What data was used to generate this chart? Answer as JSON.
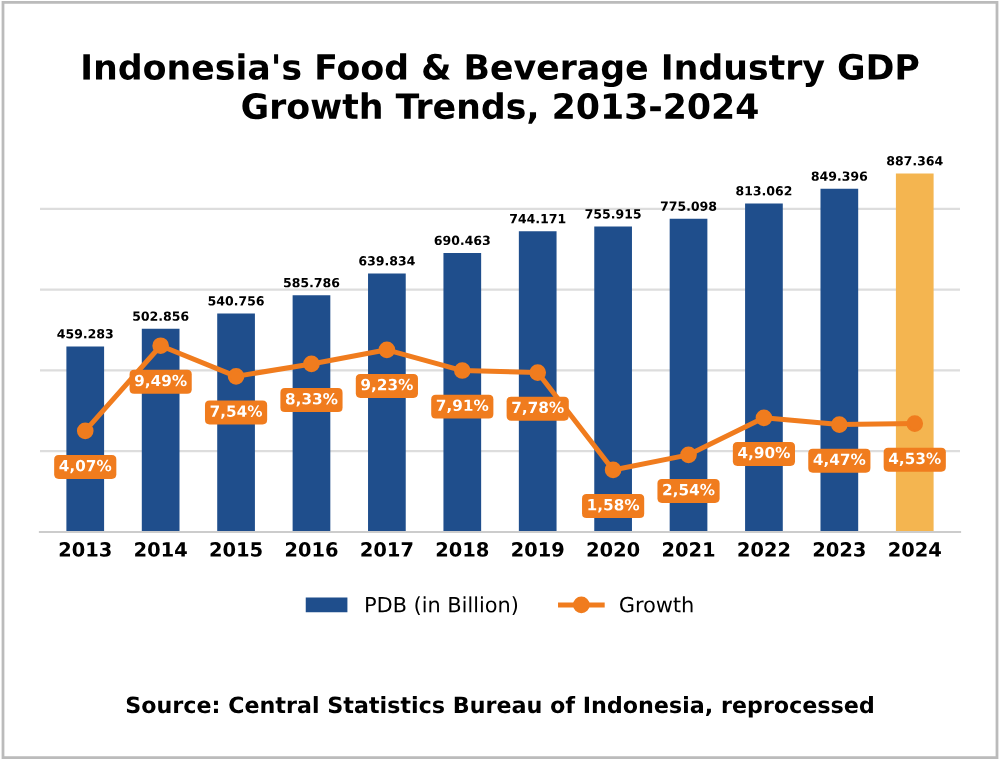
{
  "chart_data": {
    "type": "bar",
    "title": "Indonesia's Food & Beverage Industry GDP\nGrowth Trends, 2013-2024",
    "categories": [
      "2013",
      "2014",
      "2015",
      "2016",
      "2017",
      "2018",
      "2019",
      "2020",
      "2021",
      "2022",
      "2023",
      "2024"
    ],
    "series": [
      {
        "name": "PDB (in Billion)",
        "color": "#1f4e8c",
        "colors": [
          "#1f4e8c",
          "#1f4e8c",
          "#1f4e8c",
          "#1f4e8c",
          "#1f4e8c",
          "#1f4e8c",
          "#1f4e8c",
          "#1f4e8c",
          "#1f4e8c",
          "#1f4e8c",
          "#1f4e8c",
          "#f4b550"
        ],
        "values": [
          459283,
          502856,
          540756,
          585786,
          639834,
          690463,
          744171,
          755915,
          775098,
          813062,
          849396,
          887364
        ],
        "value_labels": [
          "459.283",
          "502.856",
          "540.756",
          "585.786",
          "639.834",
          "690.463",
          "744.171",
          "755.915",
          "775.098",
          "813.062",
          "849.396",
          "887.364"
        ]
      },
      {
        "name": "Growth",
        "type": "line",
        "axis": "y2",
        "color": "#f07c1e",
        "marker": "circle",
        "values": [
          4.07,
          9.49,
          7.54,
          8.33,
          9.23,
          7.91,
          7.78,
          1.58,
          2.54,
          4.9,
          4.47,
          4.53
        ],
        "value_labels": [
          "4,07%",
          "9,49%",
          "7,54%",
          "8,33%",
          "9,23%",
          "7,91%",
          "7,78%",
          "1,58%",
          "2,54%",
          "4,90%",
          "4,47%",
          "4,53%"
        ]
      }
    ],
    "grid": "y",
    "legend": "bottom",
    "tick_labels": "x",
    "annotations": [
      "Source: Central Statistics Bureau of Indonesia, reprocessed"
    ]
  }
}
